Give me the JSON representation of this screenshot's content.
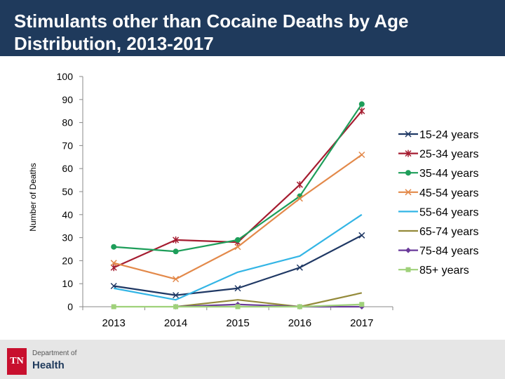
{
  "header": {
    "title": "Stimulants other than Cocaine Deaths by Age Distribution, 2013-2017"
  },
  "footer": {
    "logo_mark": "TN",
    "logo_sub": "Department of",
    "logo_name": "Health"
  },
  "chart_data": {
    "type": "line",
    "title": "Stimulants other than Cocaine Deaths by Age Distribution, 2013-2017",
    "xlabel": "",
    "ylabel": "Number of Deaths",
    "ylim": [
      0,
      100
    ],
    "yticks": [
      0,
      10,
      20,
      30,
      40,
      50,
      60,
      70,
      80,
      90,
      100
    ],
    "categories": [
      "2013",
      "2014",
      "2015",
      "2016",
      "2017"
    ],
    "legend_position": "right",
    "series": [
      {
        "name": "15-24 years",
        "color": "#1f3864",
        "marker": "x",
        "values": [
          9,
          5,
          8,
          17,
          31
        ]
      },
      {
        "name": "25-34 years",
        "color": "#a51c30",
        "marker": "star",
        "values": [
          17,
          29,
          28,
          53,
          85
        ]
      },
      {
        "name": "35-44 years",
        "color": "#1e9e5a",
        "marker": "circle",
        "values": [
          26,
          24,
          29,
          48,
          88
        ]
      },
      {
        "name": "45-54 years",
        "color": "#e3894a",
        "marker": "x",
        "values": [
          19,
          12,
          26,
          47,
          66
        ]
      },
      {
        "name": "55-64 years",
        "color": "#33b5e5",
        "marker": "none",
        "values": [
          8,
          3,
          15,
          22,
          40
        ]
      },
      {
        "name": "65-74 years",
        "color": "#948a3a",
        "marker": "none",
        "values": [
          null,
          0,
          3,
          0,
          6
        ]
      },
      {
        "name": "75-84 years",
        "color": "#6a3a9a",
        "marker": "diamond",
        "values": [
          null,
          0,
          1,
          0,
          0
        ]
      },
      {
        "name": "85+ years",
        "color": "#9fd17a",
        "marker": "square",
        "values": [
          0,
          0,
          0,
          0,
          1
        ]
      }
    ]
  }
}
